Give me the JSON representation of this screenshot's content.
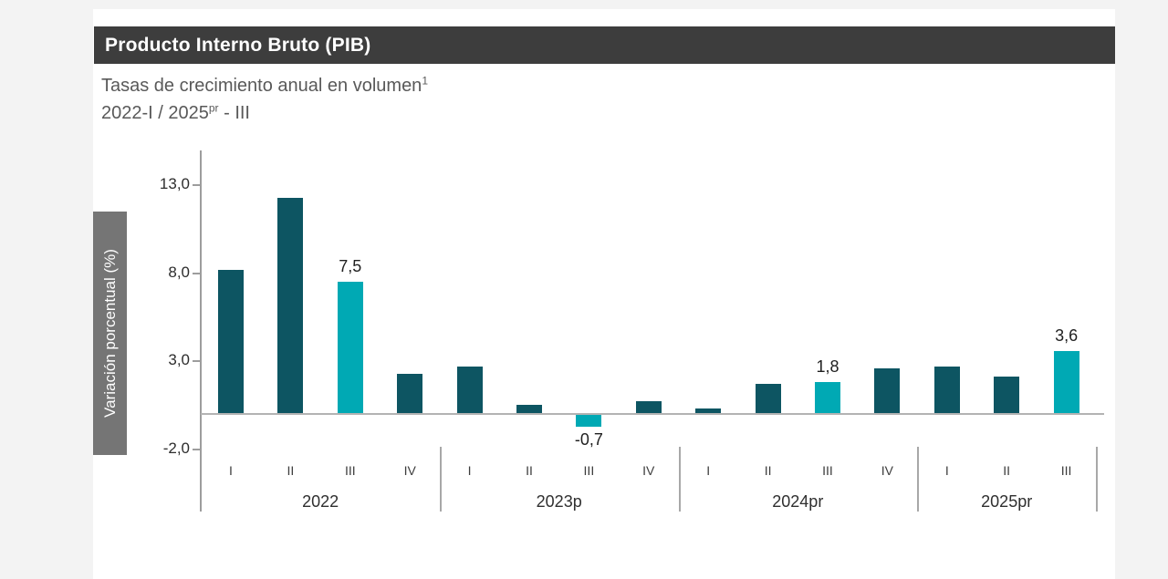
{
  "header": {
    "title": "Producto Interno Bruto (PIB)",
    "subtitle_main": "Tasas de crecimiento anual en volumen",
    "subtitle_sup": "1",
    "period_part1": "2022-I / 2025",
    "period_sup": "pr",
    "period_part2": " - III"
  },
  "chart_data": {
    "type": "bar",
    "title": "Producto Interno Bruto (PIB)",
    "subtitle": "Tasas de crecimiento anual en volumen¹",
    "period": "2022-I / 2025pr - III",
    "ylabel": "Variación porcentual (%)",
    "ylim": [
      -2.0,
      13.0
    ],
    "grid": false,
    "baseline_value": 0,
    "bar_color": "#0d5562",
    "highlight_color": "#00a9b4",
    "title_bar_color": "#3d3d3d",
    "ylabel_box_color": "#757575",
    "yticks": [
      {
        "label": "13,0",
        "value": 13.0
      },
      {
        "label": "8,0",
        "value": 8.0
      },
      {
        "label": "3,0",
        "value": 3.0
      },
      {
        "label": "-2,0",
        "value": -2.0
      }
    ],
    "groups": [
      {
        "year": "2022",
        "points": [
          {
            "q": "I",
            "value": 8.2,
            "highlight": false
          },
          {
            "q": "II",
            "value": 12.3,
            "highlight": false
          },
          {
            "q": "III",
            "value": 7.5,
            "highlight": true,
            "label": "7,5"
          },
          {
            "q": "IV",
            "value": 2.3,
            "highlight": false
          }
        ]
      },
      {
        "year": "2023p",
        "points": [
          {
            "q": "I",
            "value": 2.7,
            "highlight": false
          },
          {
            "q": "II",
            "value": 0.5,
            "highlight": false
          },
          {
            "q": "III",
            "value": -0.7,
            "highlight": true,
            "label": "-0,7"
          },
          {
            "q": "IV",
            "value": 0.7,
            "highlight": false
          }
        ]
      },
      {
        "year": "2024pr",
        "points": [
          {
            "q": "I",
            "value": 0.3,
            "highlight": false
          },
          {
            "q": "II",
            "value": 1.7,
            "highlight": false
          },
          {
            "q": "III",
            "value": 1.8,
            "highlight": true,
            "label": "1,8"
          },
          {
            "q": "IV",
            "value": 2.6,
            "highlight": false
          }
        ]
      },
      {
        "year": "2025pr",
        "points": [
          {
            "q": "I",
            "value": 2.7,
            "highlight": false
          },
          {
            "q": "II",
            "value": 2.1,
            "highlight": false
          },
          {
            "q": "III",
            "value": 3.6,
            "highlight": true,
            "label": "3,6"
          }
        ]
      }
    ]
  }
}
